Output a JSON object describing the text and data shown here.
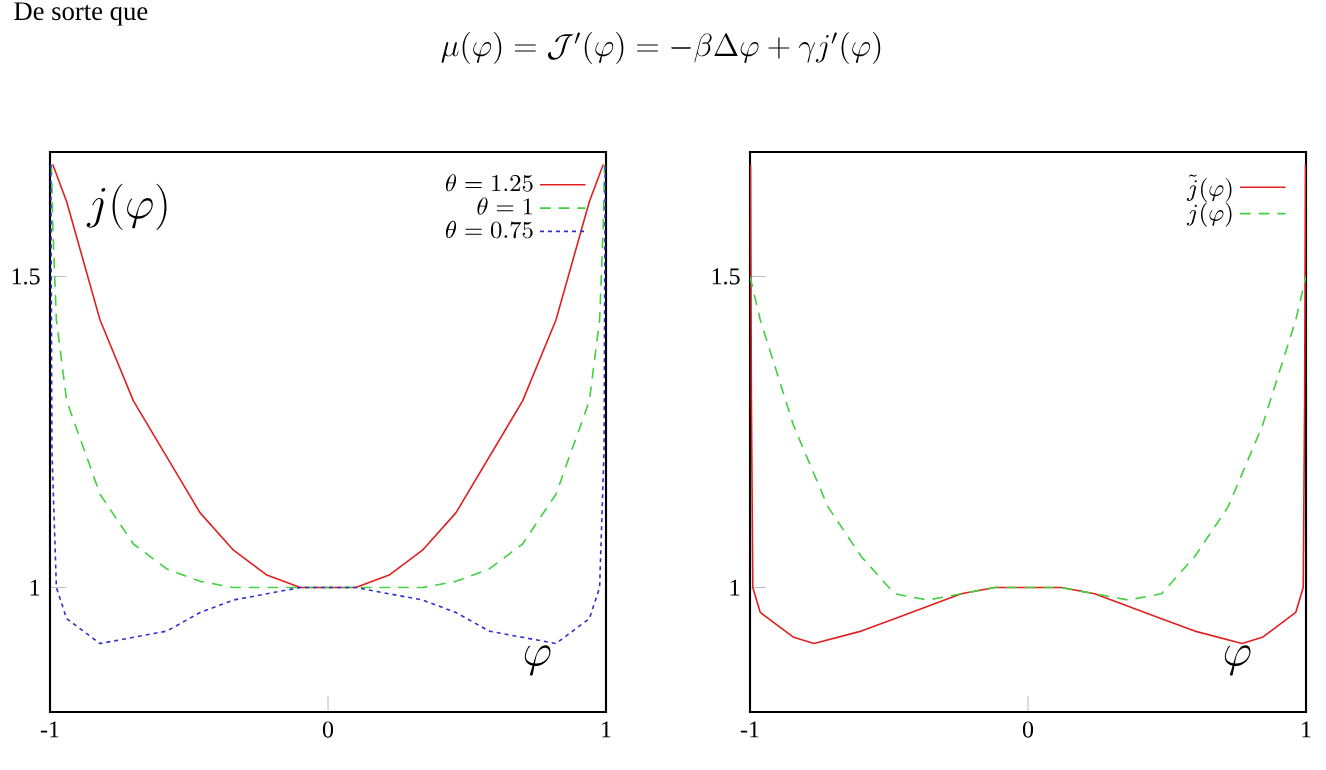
{
  "chart_data": [
    {
      "type": "line",
      "xlabel": "\\varphi",
      "ylabel": "j(\\varphi)",
      "annotations": [
        "De sorte que",
        "\\mu(\\varphi) = \\mathcal{J}'(\\varphi) = -\\beta\\Delta\\varphi + \\gamma j'(\\varphi)"
      ],
      "xlim": [
        -1,
        1
      ],
      "ylim": [
        0.8,
        1.7
      ],
      "xticks": [
        -1,
        0,
        1
      ],
      "yticks": [
        1,
        1.5
      ],
      "legend": "top right",
      "series": [
        {
          "name": "\\theta = 1.25",
          "color": "#e02020",
          "line_style": "solid",
          "x": [
            -0.99,
            -0.94,
            -0.82,
            -0.7,
            -0.58,
            -0.46,
            -0.34,
            -0.22,
            -0.1,
            0,
            0.1,
            0.22,
            0.34,
            0.46,
            0.58,
            0.7,
            0.82,
            0.94,
            0.99
          ],
          "values": [
            1.68,
            1.62,
            1.43,
            1.3,
            1.21,
            1.12,
            1.06,
            1.02,
            1.0,
            1.0,
            1.0,
            1.02,
            1.06,
            1.12,
            1.21,
            1.3,
            1.43,
            1.62,
            1.68
          ]
        },
        {
          "name": "\\theta = 1",
          "color": "#40d040",
          "line_style": "dashed",
          "x": [
            -0.995,
            -0.99,
            -0.977,
            -0.94,
            -0.82,
            -0.7,
            -0.58,
            -0.46,
            -0.34,
            -0.22,
            -0.1,
            0,
            0.1,
            0.22,
            0.34,
            0.46,
            0.58,
            0.7,
            0.82,
            0.94,
            0.977,
            0.99,
            0.995
          ],
          "values": [
            1.68,
            1.58,
            1.43,
            1.3,
            1.15,
            1.07,
            1.03,
            1.01,
            1.0,
            1.0,
            1.0,
            1.0,
            1.0,
            1.0,
            1.0,
            1.01,
            1.03,
            1.07,
            1.15,
            1.3,
            1.43,
            1.58,
            1.68
          ]
        },
        {
          "name": "\\theta = 0.75",
          "color": "#3030d0",
          "line_style": "dotted",
          "x": [
            -0.997,
            -0.993,
            -0.977,
            -0.94,
            -0.82,
            -0.7,
            -0.58,
            -0.46,
            -0.34,
            -0.22,
            -0.1,
            0,
            0.1,
            0.22,
            0.34,
            0.46,
            0.58,
            0.7,
            0.82,
            0.94,
            0.977,
            0.993,
            0.997
          ],
          "values": [
            1.68,
            1.22,
            1.0,
            0.95,
            0.91,
            0.92,
            0.93,
            0.96,
            0.98,
            0.99,
            1.0,
            1.0,
            1.0,
            0.99,
            0.98,
            0.96,
            0.93,
            0.92,
            0.91,
            0.95,
            1.0,
            1.22,
            1.68
          ]
        }
      ]
    },
    {
      "type": "line",
      "xlabel": "\\varphi",
      "xlim": [
        -1,
        1
      ],
      "ylim": [
        0.8,
        1.7
      ],
      "xticks": [
        -1,
        0,
        1
      ],
      "yticks": [
        1,
        1.5
      ],
      "legend": "top right",
      "series": [
        {
          "name": "\\tilde{j}(\\varphi)",
          "color": "#e02020",
          "line_style": "solid",
          "x": [
            -0.998,
            -0.995,
            -0.99,
            -0.963,
            -0.843,
            -0.77,
            -0.6,
            -0.48,
            -0.36,
            -0.24,
            -0.12,
            0,
            0.12,
            0.24,
            0.36,
            0.48,
            0.6,
            0.77,
            0.843,
            0.963,
            0.99,
            0.995,
            0.998
          ],
          "values": [
            1.68,
            1.3,
            1.0,
            0.96,
            0.92,
            0.91,
            0.93,
            0.95,
            0.97,
            0.99,
            1.0,
            1.0,
            1.0,
            0.99,
            0.97,
            0.95,
            0.93,
            0.91,
            0.92,
            0.96,
            1.0,
            1.3,
            1.68
          ]
        },
        {
          "name": "j(\\varphi)",
          "color": "#40d040",
          "line_style": "dashed",
          "x": [
            -1,
            -0.963,
            -0.843,
            -0.72,
            -0.6,
            -0.48,
            -0.36,
            -0.24,
            -0.12,
            0,
            0.12,
            0.24,
            0.36,
            0.48,
            0.6,
            0.72,
            0.843,
            0.963,
            1
          ],
          "values": [
            1.5,
            1.43,
            1.26,
            1.13,
            1.05,
            0.99,
            0.98,
            0.99,
            1.0,
            1.0,
            1.0,
            0.99,
            0.98,
            0.99,
            1.05,
            1.13,
            1.26,
            1.43,
            1.5
          ]
        }
      ]
    }
  ]
}
